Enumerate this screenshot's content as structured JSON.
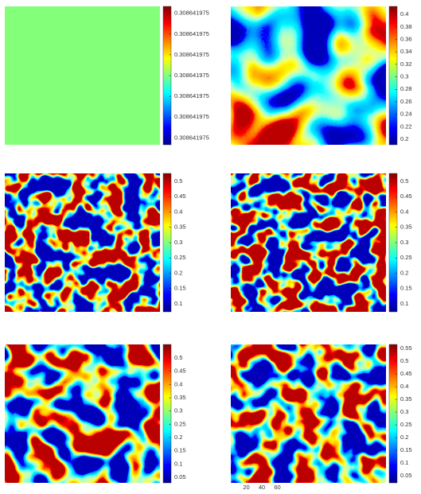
{
  "chart_data": [
    {
      "type": "heatmap",
      "colormap": "jet",
      "clim": [
        0.3086419749,
        0.3086419751
      ],
      "cticks": [
        {
          "value": 0.30864197509,
          "label": "0.308641975"
        },
        {
          "value": 0.30864197506,
          "label": "0.308641975"
        },
        {
          "value": 0.30864197503,
          "label": "0.308641975"
        },
        {
          "value": 0.308641975,
          "label": "0.308641975"
        },
        {
          "value": 0.30864197497,
          "label": "0.308641975"
        },
        {
          "value": 0.30864197494,
          "label": "0.308641975"
        },
        {
          "value": 0.30864197491,
          "label": "0.308641975"
        }
      ]
    },
    {
      "type": "heatmap",
      "colormap": "jet",
      "clim": [
        0.191,
        0.413
      ],
      "cticks": [
        0.2,
        0.22,
        0.24,
        0.26,
        0.28,
        0.3,
        0.32,
        0.34,
        0.36,
        0.38,
        0.4
      ]
    },
    {
      "type": "heatmap",
      "colormap": "jet",
      "clim": [
        0.074,
        0.526
      ],
      "cticks": [
        0.1,
        0.15,
        0.2,
        0.25,
        0.3,
        0.35,
        0.4,
        0.45,
        0.5
      ]
    },
    {
      "type": "heatmap",
      "colormap": "jet",
      "clim": [
        0.074,
        0.526
      ],
      "cticks": [
        0.1,
        0.15,
        0.2,
        0.25,
        0.3,
        0.35,
        0.4,
        0.45,
        0.5
      ]
    },
    {
      "type": "heatmap",
      "colormap": "jet",
      "clim": [
        0.029,
        0.551
      ],
      "cticks": [
        0.05,
        0.1,
        0.15,
        0.2,
        0.25,
        0.3,
        0.35,
        0.4,
        0.45,
        0.5
      ]
    },
    {
      "type": "heatmap",
      "colormap": "jet",
      "clim": [
        0.022,
        0.566
      ],
      "cticks": [
        0.05,
        0.1,
        0.15,
        0.2,
        0.25,
        0.3,
        0.35,
        0.4,
        0.45,
        0.5,
        0.55
      ],
      "xlim": [
        0,
        200
      ],
      "xticks": [
        20,
        40,
        60
      ]
    }
  ]
}
